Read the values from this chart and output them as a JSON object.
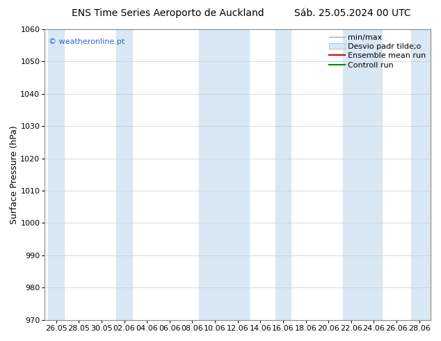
{
  "title": "ENS Time Series Aeroporto de Auckland",
  "subtitle": "Sáb. 25.05.2024 00 UTC",
  "ylabel": "Surface Pressure (hPa)",
  "ylim": [
    970,
    1060
  ],
  "yticks": [
    970,
    980,
    990,
    1000,
    1010,
    1020,
    1030,
    1040,
    1050,
    1060
  ],
  "x_labels": [
    "26.05",
    "28.05",
    "30.05",
    "02.06",
    "04.06",
    "06.06",
    "08.06",
    "10.06",
    "12.06",
    "14.06",
    "16.06",
    "18.06",
    "20.06",
    "22.06",
    "24.06",
    "26.06",
    "28.06"
  ],
  "watermark": "© weatheronline.pt",
  "legend_label_0": "min/max",
  "legend_label_1": "Desvio padr tilde;o",
  "legend_label_2": "Ensemble mean run",
  "legend_label_3": "Controll run",
  "plot_bg": "#ffffff",
  "stripe_color": "#d8e8f5",
  "title_fontsize": 10,
  "subtitle_fontsize": 10,
  "label_fontsize": 9,
  "tick_fontsize": 8,
  "legend_fontsize": 8,
  "watermark_fontsize": 8,
  "stripe_indices": [
    0,
    3,
    7,
    8,
    10,
    13,
    14,
    16
  ]
}
